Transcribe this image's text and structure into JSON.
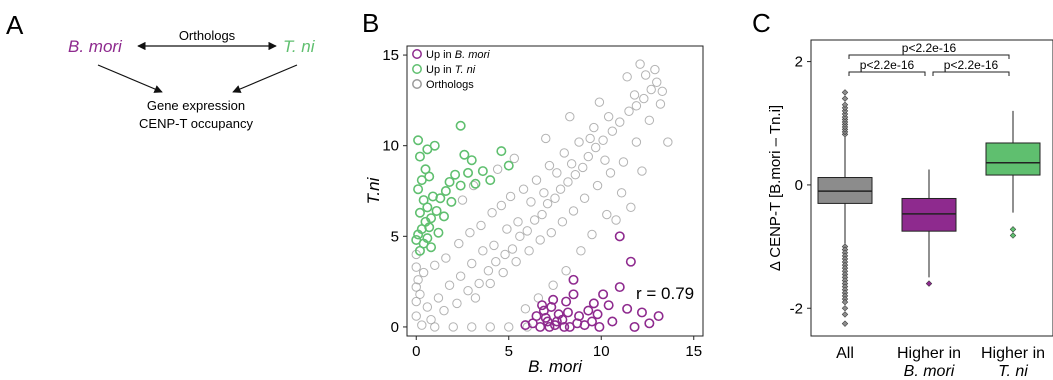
{
  "panels": {
    "a": {
      "letter": "A",
      "species_left": "B. mori",
      "species_right": "T. ni",
      "orthologs_label": "Orthologs",
      "result_line1": "Gene expression",
      "result_line2": "CENP-T occupancy"
    },
    "b": {
      "letter": "B"
    },
    "c": {
      "letter": "C"
    }
  },
  "colors": {
    "bmori": "#8e2a8e",
    "tni": "#5fbf6f",
    "orthologs": "#9a9a9a",
    "all_box": "#8c8c8c"
  },
  "chart_data": [
    {
      "type": "scatter",
      "xlabel": "B. mori",
      "ylabel": "T.ni",
      "xlim": [
        -0.5,
        15.5
      ],
      "ylim": [
        -0.5,
        15.5
      ],
      "xticks": [
        0,
        5,
        10,
        15
      ],
      "yticks": [
        0,
        5,
        10,
        15
      ],
      "annotation": "r = 0.79",
      "legend_position": "top-left",
      "series": [
        {
          "name": "Orthologs",
          "color": "#9a9a9a",
          "points": [
            [
              0.3,
              0.1
            ],
            [
              0.8,
              0.4
            ],
            [
              1.5,
              0.9
            ],
            [
              2.2,
              1.3
            ],
            [
              2.8,
              2.0
            ],
            [
              3.4,
              2.4
            ],
            [
              3.9,
              3.1
            ],
            [
              4.3,
              3.6
            ],
            [
              4.8,
              4.0
            ],
            [
              5.2,
              4.3
            ],
            [
              5.6,
              5.0
            ],
            [
              6.0,
              5.3
            ],
            [
              6.4,
              5.9
            ],
            [
              6.8,
              6.2
            ],
            [
              7.1,
              6.8
            ],
            [
              7.5,
              7.1
            ],
            [
              7.8,
              7.6
            ],
            [
              8.2,
              8.0
            ],
            [
              8.6,
              8.4
            ],
            [
              9.0,
              8.8
            ],
            [
              9.3,
              9.4
            ],
            [
              9.7,
              9.9
            ],
            [
              10.1,
              10.3
            ],
            [
              10.6,
              10.8
            ],
            [
              11.0,
              11.3
            ],
            [
              11.5,
              11.9
            ],
            [
              11.9,
              12.2
            ],
            [
              12.3,
              12.6
            ],
            [
              12.7,
              13.1
            ],
            [
              13.0,
              13.5
            ],
            [
              12.4,
              13.9
            ],
            [
              11.8,
              12.8
            ],
            [
              10.2,
              9.2
            ],
            [
              9.4,
              10.4
            ],
            [
              8.4,
              9.0
            ],
            [
              7.6,
              8.5
            ],
            [
              6.9,
              7.4
            ],
            [
              6.2,
              6.9
            ],
            [
              5.5,
              5.8
            ],
            [
              4.9,
              5.4
            ],
            [
              4.2,
              4.5
            ],
            [
              3.6,
              4.2
            ],
            [
              3.0,
              3.5
            ],
            [
              2.4,
              2.8
            ],
            [
              1.8,
              2.3
            ],
            [
              1.2,
              1.6
            ],
            [
              0.6,
              1.1
            ],
            [
              0.2,
              1.8
            ],
            [
              0.1,
              2.6
            ],
            [
              0.4,
              3.0
            ],
            [
              1.0,
              3.4
            ],
            [
              1.6,
              3.8
            ],
            [
              2.3,
              4.6
            ],
            [
              2.9,
              5.2
            ],
            [
              3.5,
              5.6
            ],
            [
              4.1,
              6.3
            ],
            [
              4.6,
              6.7
            ],
            [
              5.1,
              7.2
            ],
            [
              5.8,
              7.6
            ],
            [
              6.5,
              8.1
            ],
            [
              7.2,
              8.9
            ],
            [
              8.0,
              9.6
            ],
            [
              8.8,
              10.2
            ],
            [
              9.6,
              11.0
            ],
            [
              10.4,
              11.6
            ],
            [
              3.2,
              1.6
            ],
            [
              4.0,
              2.4
            ],
            [
              4.7,
              3.0
            ],
            [
              5.4,
              3.6
            ],
            [
              6.1,
              4.2
            ],
            [
              6.7,
              4.8
            ],
            [
              7.3,
              5.2
            ],
            [
              7.9,
              5.8
            ],
            [
              8.5,
              6.4
            ],
            [
              9.1,
              7.1
            ],
            [
              9.8,
              7.8
            ],
            [
              10.5,
              8.5
            ],
            [
              11.2,
              9.1
            ],
            [
              11.9,
              10.2
            ],
            [
              12.6,
              11.4
            ],
            [
              13.2,
              12.3
            ],
            [
              5.9,
              1.0
            ],
            [
              6.6,
              1.6
            ],
            [
              7.4,
              2.3
            ],
            [
              8.1,
              3.1
            ],
            [
              8.9,
              4.2
            ],
            [
              9.5,
              5.1
            ],
            [
              10.3,
              6.2
            ],
            [
              11.1,
              7.4
            ],
            [
              12.2,
              8.6
            ],
            [
              1.0,
              0.0
            ],
            [
              2.0,
              0.0
            ],
            [
              3.0,
              0.0
            ],
            [
              4.0,
              0.0
            ],
            [
              5.0,
              0.0
            ],
            [
              6.0,
              0.0
            ],
            [
              0.0,
              0.6
            ],
            [
              0.0,
              1.4
            ],
            [
              0.0,
              2.2
            ],
            [
              0.0,
              3.3
            ],
            [
              0.0,
              4.0
            ],
            [
              4.4,
              8.7
            ],
            [
              5.3,
              9.3
            ],
            [
              2.5,
              7.0
            ],
            [
              3.1,
              7.8
            ],
            [
              7.0,
              10.4
            ],
            [
              8.3,
              11.6
            ],
            [
              9.9,
              12.4
            ],
            [
              11.4,
              13.8
            ],
            [
              12.9,
              14.2
            ],
            [
              13.3,
              13.0
            ],
            [
              12.1,
              14.5
            ],
            [
              13.6,
              10.2
            ],
            [
              10.8,
              5.9
            ],
            [
              11.6,
              6.6
            ]
          ]
        },
        {
          "name": "Up in T. ni",
          "color": "#5fbf6f",
          "points": [
            [
              0.2,
              4.2
            ],
            [
              0.4,
              4.6
            ],
            [
              0.6,
              4.9
            ],
            [
              0.1,
              5.1
            ],
            [
              0.3,
              5.4
            ],
            [
              0.5,
              5.8
            ],
            [
              0.8,
              6.0
            ],
            [
              0.2,
              6.3
            ],
            [
              0.6,
              6.6
            ],
            [
              0.4,
              7.0
            ],
            [
              0.9,
              7.2
            ],
            [
              0.1,
              7.6
            ],
            [
              0.3,
              8.1
            ],
            [
              0.7,
              8.3
            ],
            [
              0.5,
              8.7
            ],
            [
              0.2,
              9.4
            ],
            [
              0.6,
              9.8
            ],
            [
              1.1,
              6.4
            ],
            [
              1.3,
              7.1
            ],
            [
              1.6,
              7.5
            ],
            [
              1.8,
              8.0
            ],
            [
              2.1,
              8.4
            ],
            [
              2.4,
              7.8
            ],
            [
              2.8,
              8.5
            ],
            [
              3.2,
              7.9
            ],
            [
              3.6,
              8.6
            ],
            [
              4.0,
              8.1
            ],
            [
              3.0,
              9.2
            ],
            [
              4.6,
              9.7
            ],
            [
              5.0,
              8.9
            ],
            [
              2.4,
              11.1
            ],
            [
              1.0,
              10.0
            ],
            [
              0.1,
              10.3
            ],
            [
              0.8,
              4.4
            ],
            [
              1.2,
              5.2
            ],
            [
              1.5,
              6.1
            ],
            [
              0.0,
              4.8
            ],
            [
              0.7,
              5.5
            ],
            [
              1.9,
              6.9
            ],
            [
              2.6,
              9.5
            ]
          ]
        },
        {
          "name": "Up in B. mori",
          "color": "#8e2a8e",
          "points": [
            [
              5.9,
              0.1
            ],
            [
              6.3,
              0.2
            ],
            [
              6.7,
              0.0
            ],
            [
              7.1,
              0.3
            ],
            [
              7.5,
              0.1
            ],
            [
              7.9,
              0.4
            ],
            [
              8.3,
              0.0
            ],
            [
              8.7,
              0.2
            ],
            [
              9.1,
              0.1
            ],
            [
              9.5,
              0.3
            ],
            [
              9.9,
              0.0
            ],
            [
              6.5,
              0.6
            ],
            [
              6.9,
              0.9
            ],
            [
              7.3,
              1.1
            ],
            [
              7.7,
              0.7
            ],
            [
              8.1,
              1.4
            ],
            [
              8.5,
              1.8
            ],
            [
              8.2,
              0.8
            ],
            [
              7.4,
              1.5
            ],
            [
              6.8,
              1.2
            ],
            [
              7.0,
              0.5
            ],
            [
              7.6,
              0.3
            ],
            [
              8.0,
              0.0
            ],
            [
              8.8,
              0.6
            ],
            [
              9.3,
              0.9
            ],
            [
              9.6,
              1.3
            ],
            [
              10.1,
              1.8
            ],
            [
              10.4,
              1.2
            ],
            [
              11.0,
              2.2
            ],
            [
              11.4,
              1.0
            ],
            [
              11.8,
              0.0
            ],
            [
              12.6,
              0.2
            ],
            [
              13.1,
              0.6
            ],
            [
              11.6,
              3.6
            ],
            [
              11.0,
              5.0
            ],
            [
              8.5,
              2.6
            ],
            [
              9.8,
              0.7
            ],
            [
              10.6,
              0.3
            ],
            [
              12.2,
              0.8
            ],
            [
              7.2,
              0.0
            ]
          ]
        }
      ]
    },
    {
      "type": "box",
      "ylabel": "Δ CENP-T [B.mori – Tn.i]",
      "ylim": [
        -2.45,
        2.35
      ],
      "yticks": [
        -2,
        0,
        2
      ],
      "boxes": [
        {
          "label_line1": "All",
          "label_line2": "",
          "q1": -0.3,
          "median": -0.1,
          "q3": 0.12,
          "whisker_low": -0.95,
          "whisker_high": 0.78,
          "outliers_low": [
            -1.0,
            -1.05,
            -1.1,
            -1.15,
            -1.2,
            -1.25,
            -1.3,
            -1.35,
            -1.4,
            -1.45,
            -1.5,
            -1.55,
            -1.6,
            -1.65,
            -1.7,
            -1.75,
            -1.8,
            -1.85,
            -1.9,
            -2.0,
            -2.1,
            -2.25
          ],
          "outliers_high": [
            0.82,
            0.86,
            0.9,
            0.94,
            0.98,
            1.02,
            1.06,
            1.1,
            1.15,
            1.2,
            1.25,
            1.3,
            1.4,
            1.5
          ],
          "color": "#8c8c8c"
        },
        {
          "label_line1": "Higher in",
          "label_line2": "B. mori",
          "q1": -0.75,
          "median": -0.47,
          "q3": -0.22,
          "whisker_low": -1.5,
          "whisker_high": 0.25,
          "outliers_low": [
            -1.6
          ],
          "outliers_high": [],
          "color": "#8e2a8e"
        },
        {
          "label_line1": "Higher in",
          "label_line2": "T. ni",
          "q1": 0.16,
          "median": 0.36,
          "q3": 0.68,
          "whisker_low": -0.45,
          "whisker_high": 1.2,
          "outliers_low": [
            -0.72,
            -0.82
          ],
          "outliers_high": [],
          "color": "#5fbf6f"
        }
      ],
      "significance": [
        {
          "from": 0,
          "to": 2,
          "label": "p<2.2e-16",
          "level": 2
        },
        {
          "from": 0,
          "to": 1,
          "label": "p<2.2e-16",
          "level": 1
        },
        {
          "from": 1,
          "to": 2,
          "label": "p<2.2e-16",
          "level": 1
        }
      ]
    }
  ]
}
